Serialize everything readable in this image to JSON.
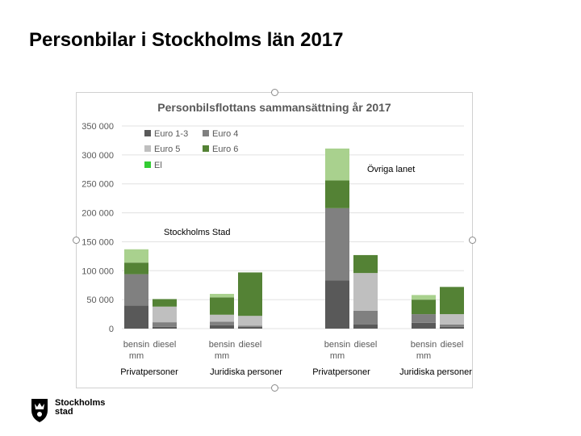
{
  "slide": {
    "title": "Personbilar i Stockholms län 2017"
  },
  "logo": {
    "line1": "Stockholms",
    "line2": "stad"
  },
  "chart_data": {
    "type": "bar",
    "stacked": true,
    "title": "Personbilsflottans sammansättning år 2017",
    "xlabel": "",
    "ylabel": "",
    "ylim": [
      0,
      350000
    ],
    "yticks": [
      0,
      50000,
      100000,
      150000,
      200000,
      250000,
      300000,
      350000
    ],
    "ytick_labels": [
      "0",
      "50 000",
      "100 000",
      "150 000",
      "200 000",
      "250 000",
      "300 000",
      "350 000"
    ],
    "categories": [
      "bensin mm",
      "diesel",
      "bensin mm",
      "diesel",
      "bensin mm",
      "diesel",
      "bensin mm",
      "diesel"
    ],
    "category_groups": [
      {
        "label": "Privatpersoner",
        "members": [
          0,
          1
        ]
      },
      {
        "label": "Juridiska personer",
        "members": [
          2,
          3
        ]
      },
      {
        "label": "Privatpersoner",
        "members": [
          4,
          5
        ]
      },
      {
        "label": "Juridiska personer",
        "members": [
          6,
          7
        ]
      }
    ],
    "region_labels": [
      "Stockholms Stad",
      "Övriga lanet"
    ],
    "series": [
      {
        "name": "Euro 1-3",
        "color": "#595959",
        "values": [
          40000,
          3000,
          6000,
          3000,
          83000,
          7000,
          10000,
          3000
        ]
      },
      {
        "name": "Euro 4",
        "color": "#808080",
        "values": [
          54000,
          8000,
          6000,
          2000,
          125000,
          24000,
          15000,
          4000
        ]
      },
      {
        "name": "Euro 5",
        "color": "#bfbfbf",
        "values": [
          0,
          27000,
          12000,
          17000,
          0,
          65000,
          0,
          18000
        ]
      },
      {
        "name": "Euro 6",
        "color": "#548235",
        "values": [
          20000,
          13000,
          30000,
          75000,
          48000,
          31000,
          25000,
          47000
        ]
      },
      {
        "name": "El",
        "color": "#a9d18e",
        "legend_color": "#33cc33",
        "values": [
          23000,
          0,
          6000,
          0,
          55000,
          0,
          8000,
          0
        ]
      }
    ],
    "legend_position": "top-left",
    "grid": true
  }
}
